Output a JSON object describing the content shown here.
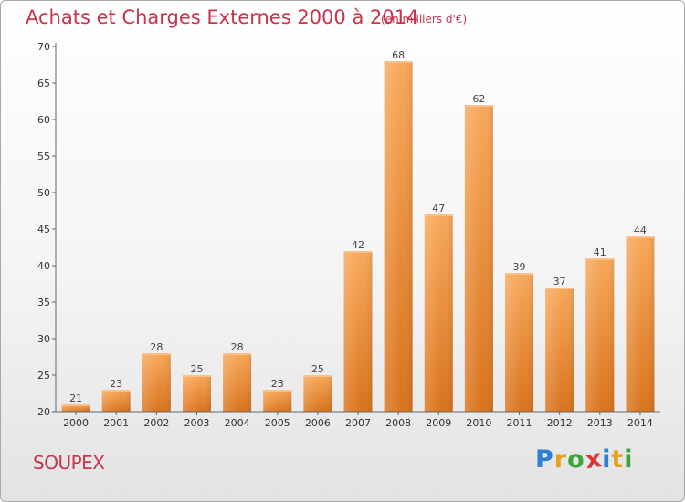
{
  "title": "Achats et Charges Externes 2000 à 2014",
  "subtitle": "(en milliers d'€)",
  "commune": "SOUPEX",
  "logo": {
    "letters": [
      "P",
      "r",
      "o",
      "x",
      "i",
      "t",
      "i"
    ],
    "colors": [
      "#2f7fd0",
      "#e6a11c",
      "#3aa63a",
      "#d93535",
      "#2f7fd0",
      "#e6a11c",
      "#3aa63a"
    ]
  },
  "colors": {
    "bar_top": "#f8a85a",
    "bar_bottom": "#d9731c",
    "axis": "#666666",
    "grid": "#d6d6d6"
  },
  "chart_data": {
    "type": "bar",
    "title": "Achats et Charges Externes 2000 à 2014",
    "subtitle": "(en milliers d'€)",
    "categories": [
      "2000",
      "2001",
      "2002",
      "2003",
      "2004",
      "2005",
      "2006",
      "2007",
      "2008",
      "2009",
      "2010",
      "2011",
      "2012",
      "2013",
      "2014"
    ],
    "values": [
      21,
      23,
      28,
      25,
      28,
      23,
      25,
      42,
      68,
      47,
      62,
      39,
      37,
      41,
      44
    ],
    "ylim": [
      20,
      70
    ],
    "yticks": [
      20,
      25,
      30,
      35,
      40,
      45,
      50,
      55,
      60,
      65,
      70
    ],
    "grid": false,
    "data_labels": true
  }
}
